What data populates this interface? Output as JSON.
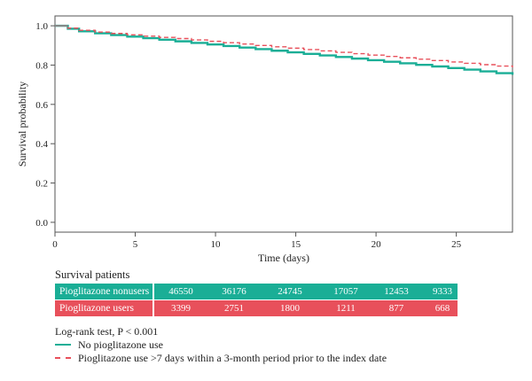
{
  "chart_data": {
    "type": "line",
    "title": "",
    "xlabel": "Time (days)",
    "ylabel": "Survival probability",
    "xlim": [
      0,
      28.5
    ],
    "ylim": [
      -0.05,
      1.05
    ],
    "xticks": [
      0,
      5,
      10,
      15,
      20,
      25
    ],
    "yticks": [
      0.0,
      0.2,
      0.4,
      0.6,
      0.8,
      1.0
    ],
    "xtick_labels": [
      "0",
      "5",
      "10",
      "15",
      "20",
      "25"
    ],
    "ytick_labels": [
      "0.0",
      "0.2",
      "0.4",
      "0.6",
      "0.8",
      "1.0"
    ],
    "grid": false,
    "legend_position": "bottom",
    "series": [
      {
        "name": "No pioglitazone use",
        "style": "solid",
        "color": "#1aae96",
        "x": [
          0,
          0.8,
          1.5,
          2.5,
          3.5,
          4.5,
          5.5,
          6.5,
          7.5,
          8.5,
          9.5,
          10.5,
          11.5,
          12.5,
          13.5,
          14.5,
          15.5,
          16.5,
          17.5,
          18.5,
          19.5,
          20.5,
          21.5,
          22.5,
          23.5,
          24.5,
          25.5,
          26.5,
          27.5,
          28.5
        ],
        "y": [
          1.0,
          0.985,
          0.972,
          0.962,
          0.953,
          0.945,
          0.937,
          0.929,
          0.921,
          0.913,
          0.905,
          0.897,
          0.889,
          0.881,
          0.873,
          0.865,
          0.857,
          0.849,
          0.841,
          0.833,
          0.825,
          0.817,
          0.809,
          0.801,
          0.793,
          0.785,
          0.777,
          0.768,
          0.759,
          0.751
        ]
      },
      {
        "name": "Pioglitazone use >7 days within a 3-month period prior to the index date",
        "style": "dashed",
        "color": "#e8505b",
        "x": [
          0,
          0.8,
          1.5,
          2.5,
          3.5,
          4.5,
          5.5,
          6.5,
          7.5,
          8.5,
          9.5,
          10.5,
          11.5,
          12.5,
          13.5,
          14.5,
          15.5,
          16.5,
          17.5,
          18.5,
          19.5,
          20.5,
          21.5,
          22.5,
          23.5,
          24.5,
          25.5,
          26.5,
          27.5,
          28.5
        ],
        "y": [
          1.0,
          0.988,
          0.977,
          0.968,
          0.961,
          0.954,
          0.947,
          0.941,
          0.935,
          0.928,
          0.921,
          0.914,
          0.907,
          0.9,
          0.893,
          0.886,
          0.879,
          0.872,
          0.865,
          0.858,
          0.851,
          0.844,
          0.837,
          0.83,
          0.823,
          0.816,
          0.809,
          0.802,
          0.795,
          0.788
        ]
      }
    ]
  },
  "risk_table": {
    "title": "Survival patients",
    "rows": [
      {
        "label": "Pioglitazone nonusers",
        "values": [
          "46550",
          "36176",
          "24745",
          "17057",
          "12453",
          "9333"
        ]
      },
      {
        "label": "Pioglitazone users",
        "values": [
          "3399",
          "2751",
          "1800",
          "1211",
          "877",
          "668"
        ]
      }
    ]
  },
  "footer": {
    "logrank": "Log-rank test, P < 0.001"
  }
}
